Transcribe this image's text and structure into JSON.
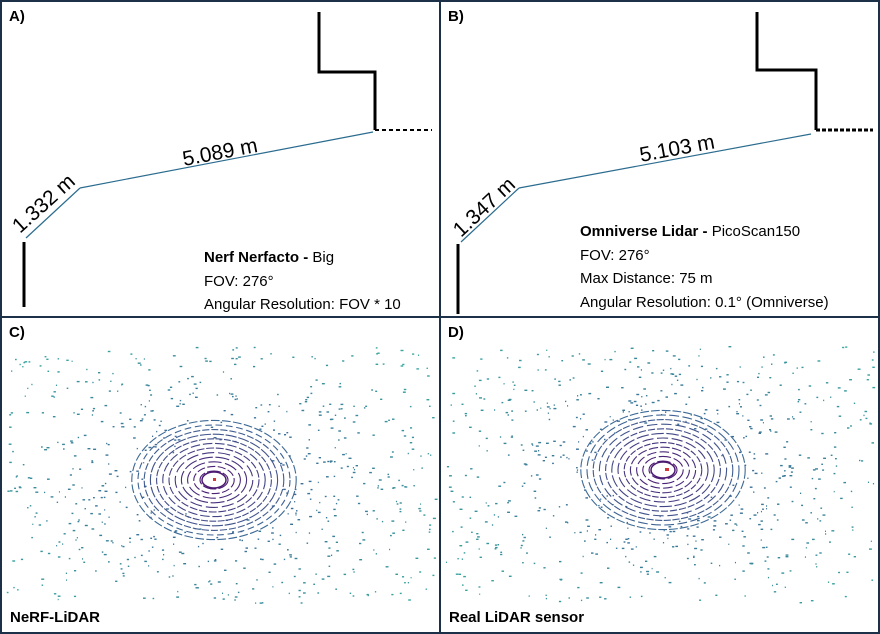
{
  "panels": {
    "a": {
      "label": "A)",
      "measure_short": "1.332 m",
      "measure_long": "5.089 m",
      "title_bold": "Nerf Nerfacto -",
      "title_rest": " Big",
      "line2": "FOV: 276°",
      "line3": "Angular Resolution: FOV * 10"
    },
    "b": {
      "label": "B)",
      "measure_short": "1.347 m",
      "measure_long": "5.103 m",
      "title_bold": "Omniverse Lidar -",
      "title_rest": " PicoScan150",
      "line2": "FOV: 276°",
      "line3": "Max Distance: 75 m",
      "line4": "Angular Resolution: 0.1° (Omniverse)"
    },
    "c": {
      "label": "C)",
      "caption": "NeRF-LiDAR"
    },
    "d": {
      "label": "D)",
      "caption": "Real LiDAR sensor"
    }
  },
  "colors": {
    "border": "#1c3047",
    "measure_line": "#2b6c8f",
    "ring_inner": "#4b1a72",
    "ring_outer": "#3d6a96",
    "scatter_far": "#38a6a0"
  }
}
